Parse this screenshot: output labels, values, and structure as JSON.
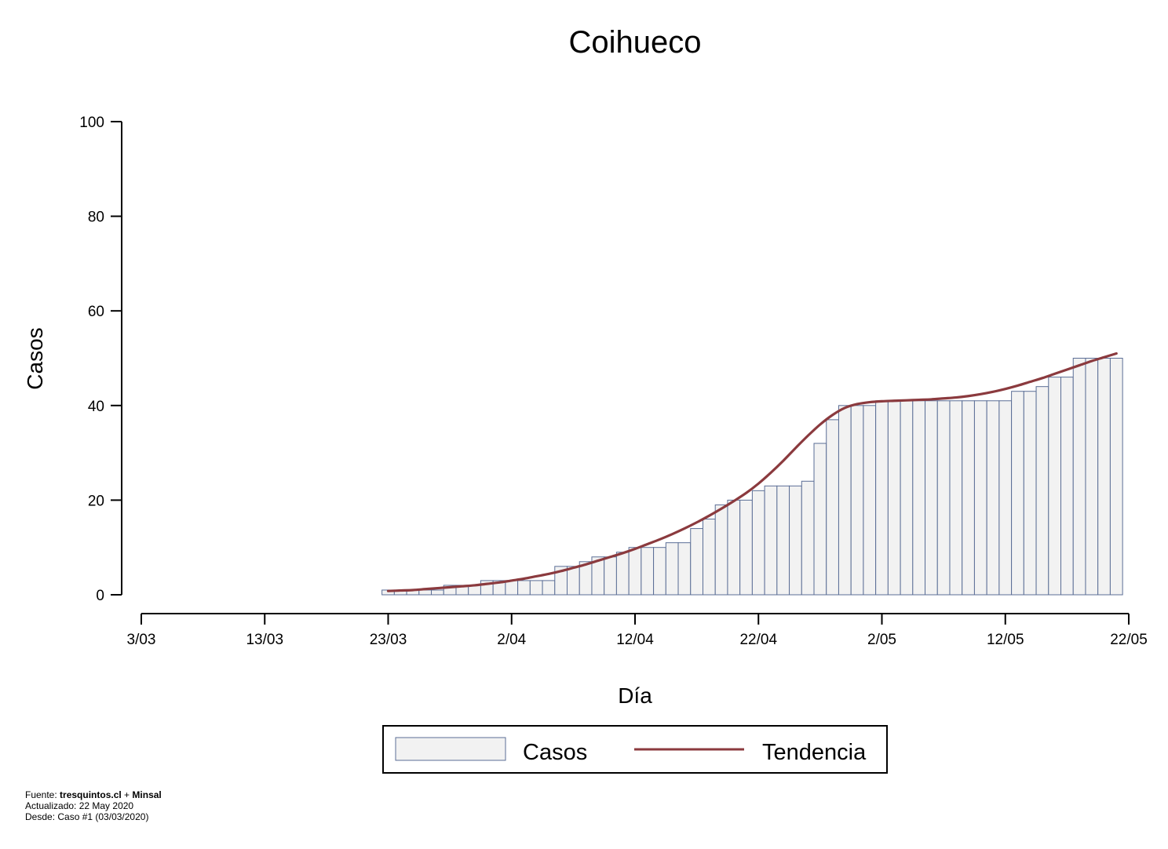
{
  "chart_data": {
    "type": "bar",
    "title": "Coihueco",
    "xlabel": "Día",
    "ylabel": "Casos",
    "ylim": [
      0,
      100
    ],
    "yticks": [
      0,
      20,
      40,
      60,
      80,
      100
    ],
    "xticks": [
      "3/03",
      "13/03",
      "23/03",
      "2/04",
      "12/04",
      "22/04",
      "2/05",
      "12/05",
      "22/05"
    ],
    "xlim": [
      "2020-03-03",
      "2020-05-22"
    ],
    "first_date": "2020-03-23",
    "series": [
      {
        "name": "Casos",
        "values": [
          1,
          1,
          1,
          1,
          1,
          2,
          2,
          2,
          3,
          3,
          3,
          3,
          3,
          3,
          6,
          6,
          7,
          8,
          8,
          9,
          10,
          10,
          10,
          11,
          11,
          14,
          16,
          19,
          20,
          20,
          22,
          23,
          23,
          23,
          24,
          32,
          37,
          40,
          40,
          40,
          41,
          41,
          41,
          41,
          41,
          41,
          41,
          41,
          41,
          41,
          41,
          43,
          43,
          44,
          46,
          46,
          50,
          50,
          50,
          50
        ]
      },
      {
        "name": "Tendencia",
        "values": [
          0.8,
          0.9,
          1.0,
          1.2,
          1.4,
          1.6,
          1.8,
          2.0,
          2.3,
          2.6,
          3.0,
          3.4,
          3.9,
          4.4,
          5.0,
          5.7,
          6.4,
          7.2,
          8.0,
          8.8,
          9.7,
          10.7,
          11.7,
          12.8,
          14.0,
          15.3,
          16.7,
          18.2,
          19.8,
          21.5,
          23.5,
          25.8,
          28.3,
          31.0,
          33.6,
          36.0,
          38.0,
          39.5,
          40.3,
          40.7,
          40.9,
          41.0,
          41.1,
          41.2,
          41.3,
          41.5,
          41.7,
          42.0,
          42.4,
          42.9,
          43.5,
          44.2,
          45.0,
          45.8,
          46.7,
          47.6,
          48.5,
          49.4,
          50.2,
          51.0
        ]
      }
    ],
    "legend": {
      "position": "bottom",
      "items": [
        "Casos",
        "Tendencia"
      ]
    },
    "colors": {
      "bar_fill": "#f2f2f2",
      "bar_stroke": "#5b6e96",
      "trend": "#8b3a3e"
    }
  },
  "footer": {
    "source_label": "Fuente: ",
    "source_site": "tresquintos.cl",
    "source_plus": " + ",
    "source_org": "Minsal",
    "updated": "Actualizado: 22 May 2020",
    "since": "Desde: Caso #1  (03/03/2020)"
  }
}
